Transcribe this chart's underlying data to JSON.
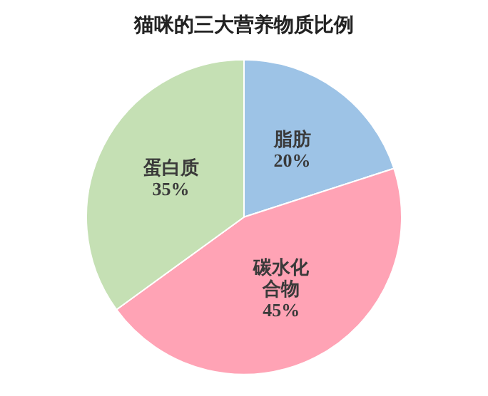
{
  "chart_data": {
    "type": "pie",
    "title": "猫咪的三大营养物质比例",
    "categories": [
      "脂肪",
      "碳水化合物",
      "蛋白质"
    ],
    "values": [
      20,
      45,
      35
    ],
    "value_labels": [
      "20%",
      "45%",
      "35%"
    ],
    "colors": [
      "#9dc3e6",
      "#ffa3b5",
      "#c5e0b4"
    ],
    "legend": false
  }
}
